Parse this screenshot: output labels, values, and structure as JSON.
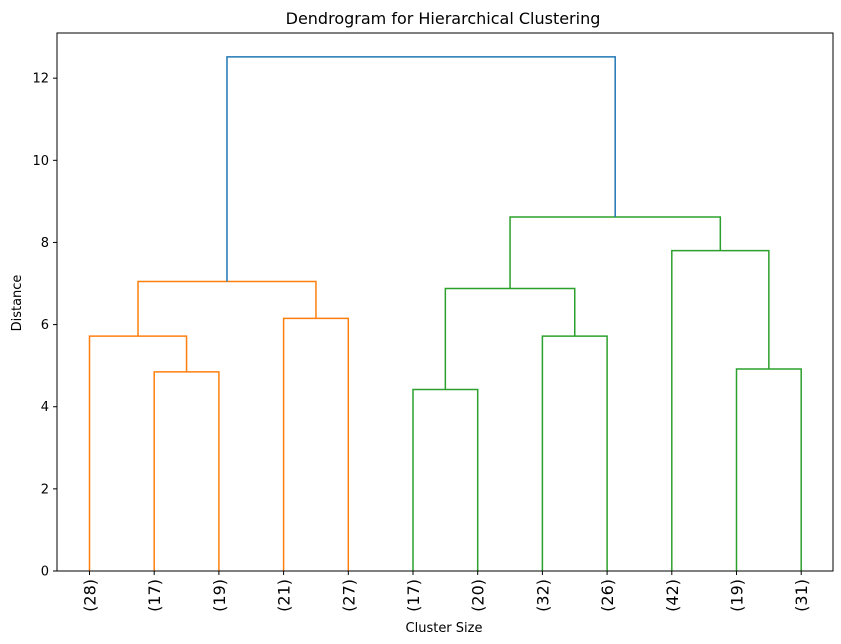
{
  "chart_data": {
    "type": "dendrogram",
    "title": "Dendrogram for Hierarchical Clustering",
    "xlabel": "Cluster Size",
    "ylabel": "Distance",
    "ylim": [
      0,
      13.1
    ],
    "yticks": [
      0,
      2,
      4,
      6,
      8,
      10,
      12
    ],
    "leaves": [
      "(28)",
      "(17)",
      "(19)",
      "(21)",
      "(27)",
      "(17)",
      "(20)",
      "(32)",
      "(26)",
      "(42)",
      "(19)",
      "(31)"
    ],
    "colors": {
      "orange": "#ff7f0e",
      "green": "#2ca02c",
      "blue": "#1f77b4"
    },
    "links": [
      {
        "left": "leaf:1",
        "right": "leaf:2",
        "height": 4.85,
        "color": "orange"
      },
      {
        "left": "leaf:0",
        "right": "node:0",
        "height": 5.72,
        "color": "orange"
      },
      {
        "left": "leaf:3",
        "right": "leaf:4",
        "height": 6.15,
        "color": "orange"
      },
      {
        "left": "node:1",
        "right": "node:2",
        "height": 7.05,
        "color": "orange"
      },
      {
        "left": "leaf:5",
        "right": "leaf:6",
        "height": 4.42,
        "color": "green"
      },
      {
        "left": "leaf:7",
        "right": "leaf:8",
        "height": 5.72,
        "color": "green"
      },
      {
        "left": "node:4",
        "right": "node:5",
        "height": 6.88,
        "color": "green"
      },
      {
        "left": "leaf:10",
        "right": "leaf:11",
        "height": 4.92,
        "color": "green"
      },
      {
        "left": "leaf:9",
        "right": "node:7",
        "height": 7.8,
        "color": "green"
      },
      {
        "left": "node:6",
        "right": "node:8",
        "height": 8.62,
        "color": "green"
      },
      {
        "left": "node:3",
        "right": "node:9",
        "height": 12.52,
        "color": "blue"
      }
    ]
  }
}
